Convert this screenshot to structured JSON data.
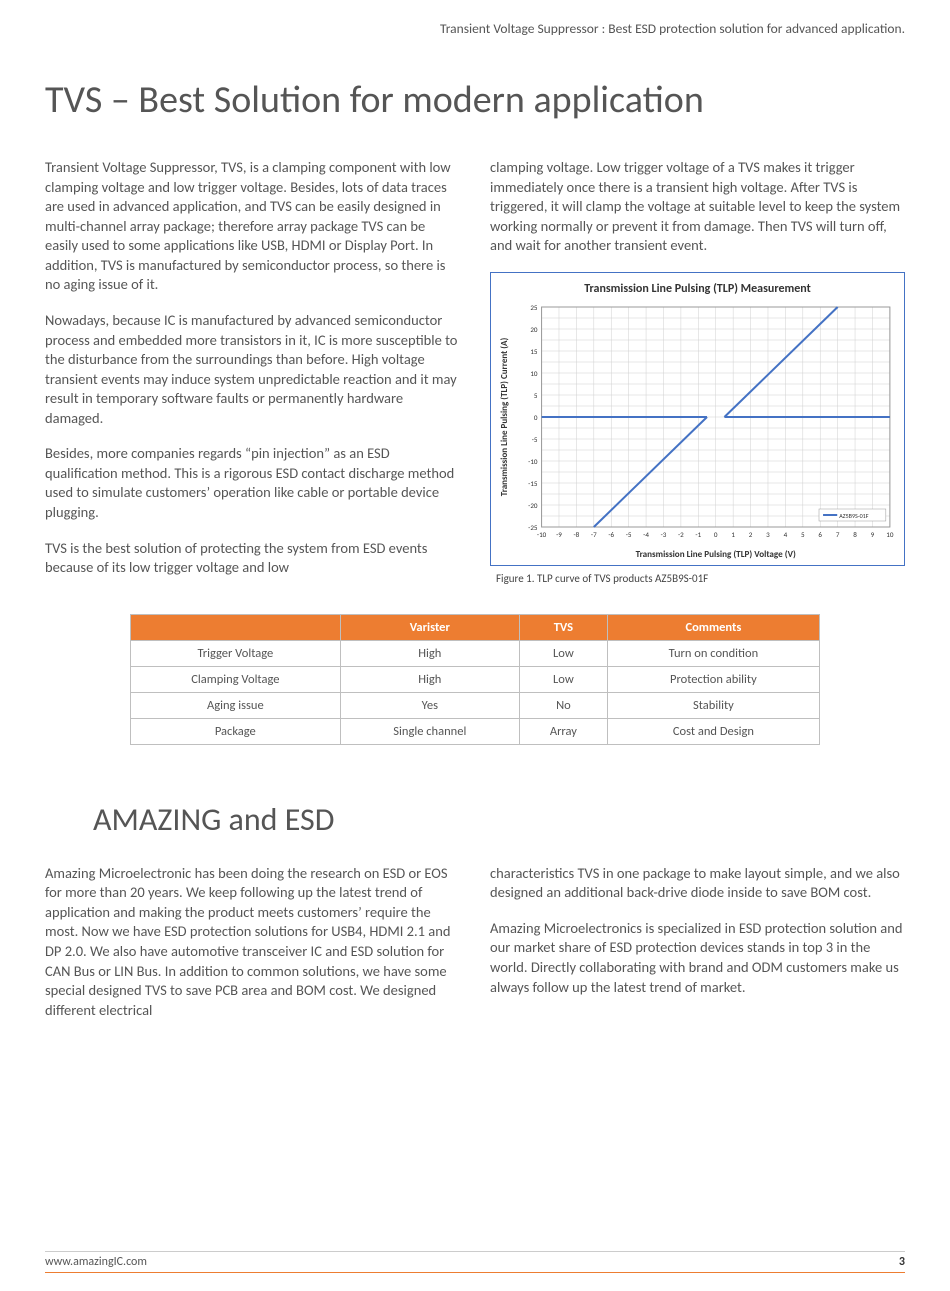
{
  "header": "Transient Voltage Suppressor : Best ESD protection solution for advanced application.",
  "h1": "TVS – Best Solution for modern application",
  "left_paras": [
    "Transient Voltage Suppressor, TVS, is a clamping component with low clamping voltage and low trigger voltage. Besides, lots of data traces are used in advanced application, and TVS can be easily designed in multi-channel array package; therefore array package TVS can be easily used to some applications like USB, HDMI or Display Port. In addition, TVS is manufactured by semiconductor process, so there is no aging issue of it.",
    "Nowadays, because IC is manufactured by advanced semiconductor process and embedded more transistors in it, IC is more susceptible to the disturbance from the surroundings than before. High voltage transient events may induce system unpredictable reaction and it may result in temporary software faults or permanently hardware damaged.",
    "Besides, more companies regards “pin injection” as an ESD qualification method. This is a rigorous ESD contact discharge method used to simulate customers’ operation like cable or portable device plugging.",
    "TVS is the best solution of protecting the system from ESD events because of its low trigger voltage and low"
  ],
  "right_paras_top": [
    "clamping voltage. Low trigger voltage of a TVS makes it trigger immediately once there is a transient high voltage. After TVS is triggered, it will clamp the voltage at suitable level to keep the system working normally or prevent it from damage. Then TVS will turn off, and wait for another transient event."
  ],
  "chart": {
    "type": "line",
    "title": "Transmission Line Pulsing (TLP) Measurement",
    "xlabel": "Transmission Line Pulsing (TLP) Voltage (V)",
    "ylabel": "Transmission Line Pulsing (TLP) Current (A)",
    "xlim": [
      -10,
      10
    ],
    "ylim": [
      -25,
      25
    ],
    "xticks": [
      -10,
      -9,
      -8,
      -7,
      -6,
      -5,
      -4,
      -3,
      -2,
      -1,
      0,
      1,
      2,
      3,
      4,
      5,
      6,
      7,
      8,
      9,
      10
    ],
    "yticks": [
      -25,
      -20,
      -15,
      -10,
      -5,
      0,
      5,
      10,
      15,
      20,
      25
    ],
    "series_name": "AZ5B9S-01F",
    "series_color": "#4472c4",
    "line_width": 2,
    "grid_color": "#d0d0d0",
    "border_color": "#4472c4",
    "label_color": "#333333",
    "label_fontsize": 9,
    "title_fontsize": 12,
    "legend_box_color": "#4472c4",
    "flat_x": [
      -10,
      -0.5
    ],
    "flat_y": 0,
    "flat_x2": [
      0.5,
      10
    ],
    "rise_points": [
      [
        -7,
        -25
      ],
      [
        -0.5,
        0
      ]
    ],
    "rise_points2": [
      [
        0.5,
        0
      ],
      [
        7,
        25
      ]
    ]
  },
  "fig_caption": "Figure 1. TLP curve of TVS products AZ5B9S-01F",
  "table": {
    "header_bg": "#ed7d31",
    "header_fg": "#ffffff",
    "columns": [
      "",
      "Varister",
      "TVS",
      "Comments"
    ],
    "rows": [
      [
        "Trigger Voltage",
        "High",
        "Low",
        "Turn on condition"
      ],
      [
        "Clamping Voltage",
        "High",
        "Low",
        "Protection ability"
      ],
      [
        "Aging issue",
        "Yes",
        "No",
        "Stability"
      ],
      [
        "Package",
        "Single channel",
        "Array",
        "Cost and Design"
      ]
    ]
  },
  "h2": "AMAZING and ESD",
  "sec2_left": [
    "Amazing Microelectronic has been doing the research on ESD or EOS for more than 20 years. We keep following up the latest trend of application and making the product meets customers’ require the most. Now we have ESD protection solutions for USB4, HDMI 2.1 and DP 2.0. We also have automotive transceiver IC and ESD solution for CAN Bus or LIN Bus. In addition to common solutions, we have some special designed TVS to save PCB area and BOM cost. We designed different electrical"
  ],
  "sec2_right": [
    "characteristics TVS in one package to make layout simple, and we also designed an additional back-drive diode inside to save BOM cost.",
    "Amazing Microelectronics is specialized in ESD protection solution and our market share of ESD protection devices stands in top 3 in the world. Directly collaborating with brand and ODM customers make us always follow up the latest trend of market."
  ],
  "footer_url": "www.amazingIC.com",
  "page_number": "3"
}
